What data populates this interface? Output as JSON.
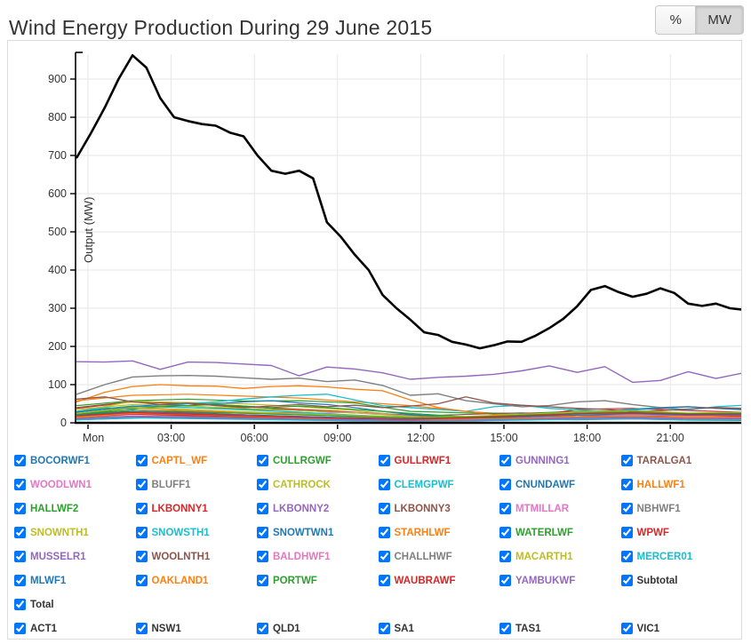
{
  "header": {
    "title": "Wind Energy Production During 29 June 2015",
    "unit_toggle": {
      "percent_label": "%",
      "mw_label": "MW",
      "active": "MW"
    }
  },
  "chart_data": {
    "type": "line",
    "title": "Wind Energy Production During 29 June 2015",
    "xlabel": "",
    "ylabel": "Output (MW)",
    "ylim": [
      0,
      970
    ],
    "yticks": [
      0,
      100,
      200,
      300,
      400,
      500,
      600,
      700,
      800,
      900
    ],
    "xtick_hours": [
      0,
      3,
      6,
      9,
      12,
      15,
      18,
      21
    ],
    "xtick_labels": [
      "Mon",
      "03:00",
      "06:00",
      "09:00",
      "12:00",
      "15:00",
      "18:00",
      "21:00"
    ],
    "x_range_hours": [
      -0.4,
      23.65
    ],
    "grid": true,
    "legend_position": "bottom",
    "axis_color": "#000000",
    "grid_color": "#e6e6e6",
    "series": [
      {
        "name": "BOCORWF1",
        "color": "#1f77b4",
        "w": 1.2,
        "values": [
          8,
          12,
          16,
          14,
          10,
          8,
          6,
          5,
          8,
          12,
          15,
          12,
          10
        ]
      },
      {
        "name": "CAPTL_WF",
        "color": "#ff7f0e",
        "w": 1.2,
        "values": [
          58,
          72,
          75,
          70,
          65,
          55,
          45,
          30,
          20,
          15,
          18,
          22,
          20
        ]
      },
      {
        "name": "CULLRGWF",
        "color": "#2ca02c",
        "w": 1.2,
        "values": [
          45,
          58,
          62,
          57,
          58,
          52,
          30,
          26,
          25,
          30,
          32,
          24,
          27
        ]
      },
      {
        "name": "GULLRWF1",
        "color": "#d62728",
        "w": 1.2,
        "values": [
          38,
          55,
          50,
          42,
          35,
          28,
          20,
          13,
          12,
          35,
          38,
          32,
          28
        ]
      },
      {
        "name": "GUNNING1",
        "color": "#9467bd",
        "w": 1.2,
        "values": [
          20,
          26,
          24,
          28,
          26,
          20,
          13,
          9,
          12,
          16,
          24,
          18,
          15
        ]
      },
      {
        "name": "TARALGA1",
        "color": "#8c564b",
        "w": 1.2,
        "values": [
          40,
          56,
          52,
          44,
          32,
          26,
          20,
          16,
          12,
          14,
          18,
          16,
          18
        ]
      },
      {
        "name": "WOODLWN1",
        "color": "#e377c2",
        "w": 1.2,
        "values": [
          12,
          22,
          18,
          14,
          11,
          9,
          8,
          10,
          13,
          12,
          14,
          11,
          12
        ]
      },
      {
        "name": "BLUFF1",
        "color": "#7f7f7f",
        "w": 1.2,
        "values": [
          8,
          14,
          16,
          13,
          11,
          8,
          6,
          7,
          9,
          8,
          10,
          7,
          6
        ]
      },
      {
        "name": "CATHROCK",
        "color": "#bcbd22",
        "w": 1.2,
        "values": [
          30,
          56,
          53,
          50,
          42,
          32,
          18,
          10,
          13,
          20,
          22,
          15,
          14
        ]
      },
      {
        "name": "CLEMGPWF",
        "color": "#17becf",
        "w": 1.3,
        "values": [
          30,
          40,
          35,
          45,
          50,
          55,
          62,
          68,
          72,
          75,
          60,
          45,
          40,
          35,
          30,
          42,
          46,
          38,
          34,
          30,
          36,
          40,
          34,
          42,
          46
        ]
      },
      {
        "name": "CNUNDAWF",
        "color": "#1f77b4",
        "w": 1.2,
        "values": [
          15,
          24,
          21,
          18,
          15,
          12,
          10,
          11,
          13,
          15,
          18,
          14,
          15
        ]
      },
      {
        "name": "HALLWF1",
        "color": "#ff7f0e",
        "w": 1.3,
        "values": [
          55,
          80,
          95,
          100,
          97,
          96,
          90,
          95,
          97,
          94,
          88,
          84,
          60,
          40,
          30,
          22,
          18,
          15,
          20,
          24,
          20,
          16,
          14,
          18,
          20
        ]
      },
      {
        "name": "HALLWF2",
        "color": "#2ca02c",
        "w": 1.2,
        "values": [
          30,
          44,
          40,
          36,
          32,
          26,
          20,
          16,
          18,
          24,
          28,
          24,
          26
        ]
      },
      {
        "name": "LKBONNY1",
        "color": "#d62728",
        "w": 1.2,
        "values": [
          20,
          33,
          27,
          21,
          15,
          11,
          12,
          16,
          20,
          24,
          20,
          24,
          21
        ]
      },
      {
        "name": "LKBONNY2",
        "color": "#9467bd",
        "w": 1.4,
        "values": [
          160,
          159,
          162,
          140,
          159,
          158,
          154,
          150,
          123,
          146,
          141,
          131,
          114,
          119,
          122,
          127,
          136,
          149,
          132,
          147,
          106,
          111,
          134,
          116,
          131
        ]
      },
      {
        "name": "LKBONNY3",
        "color": "#8c564b",
        "w": 1.2,
        "values": [
          25,
          29,
          26,
          21,
          15,
          13,
          17,
          22,
          26,
          22,
          18,
          20,
          17
        ]
      },
      {
        "name": "MTMILLAR",
        "color": "#e377c2",
        "w": 1.2,
        "values": [
          15,
          28,
          32,
          26,
          24,
          28,
          18,
          9,
          13,
          20,
          24,
          16,
          18
        ]
      },
      {
        "name": "NBHWF1",
        "color": "#7f7f7f",
        "w": 1.4,
        "values": [
          75,
          100,
          120,
          123,
          124,
          122,
          118,
          114,
          117,
          108,
          112,
          98,
          72,
          76,
          58,
          50,
          42,
          45,
          55,
          58,
          48,
          40,
          42,
          38,
          35
        ]
      },
      {
        "name": "SNOWNTH1",
        "color": "#bcbd22",
        "w": 1.2,
        "values": [
          35,
          48,
          44,
          38,
          32,
          26,
          16,
          12,
          16,
          22,
          26,
          22,
          24
        ]
      },
      {
        "name": "SNOWSTH1",
        "color": "#17becf",
        "w": 1.2,
        "values": [
          30,
          43,
          40,
          34,
          28,
          20,
          14,
          13,
          18,
          24,
          28,
          24,
          26
        ]
      },
      {
        "name": "SNOWTWN1",
        "color": "#1f77b4",
        "w": 1.2,
        "values": [
          28,
          35,
          42,
          48,
          45,
          50,
          55,
          58,
          52,
          48,
          40,
          30,
          22,
          18,
          14,
          12,
          16,
          20,
          26,
          30,
          34,
          38,
          42,
          38,
          34
        ]
      },
      {
        "name": "STARHLWF",
        "color": "#ff7f0e",
        "w": 1.2,
        "values": [
          25,
          38,
          32,
          27,
          22,
          16,
          10,
          8,
          12,
          16,
          20,
          16,
          18
        ]
      },
      {
        "name": "WATERLWF",
        "color": "#2ca02c",
        "w": 1.2,
        "values": [
          25,
          30,
          38,
          42,
          45,
          48,
          44,
          40,
          44,
          40,
          35,
          30,
          25,
          20,
          16,
          12,
          15,
          18,
          24,
          28,
          32,
          28,
          24,
          20,
          24
        ]
      },
      {
        "name": "WPWF",
        "color": "#d62728",
        "w": 1.2,
        "values": [
          15,
          23,
          19,
          16,
          13,
          10,
          8,
          12,
          16,
          20,
          16,
          20,
          17
        ]
      },
      {
        "name": "MUSSELR1",
        "color": "#9467bd",
        "w": 1.2,
        "values": [
          10,
          16,
          13,
          11,
          9,
          7,
          5,
          6,
          8,
          10,
          12,
          9,
          10
        ]
      },
      {
        "name": "WOOLNTH1",
        "color": "#8c564b",
        "w": 1.3,
        "values": [
          62,
          68,
          55,
          48,
          52,
          45,
          40,
          44,
          48,
          42,
          46,
          40,
          44,
          50,
          68,
          52,
          46,
          42,
          38,
          35,
          30,
          32,
          36,
          40,
          38
        ]
      },
      {
        "name": "BALDHWF1",
        "color": "#e377c2",
        "w": 1.2,
        "values": [
          18,
          28,
          25,
          21,
          17,
          13,
          10,
          12,
          16,
          20,
          22,
          18,
          20
        ]
      },
      {
        "name": "CHALLHWF",
        "color": "#7f7f7f",
        "w": 1.2,
        "values": [
          12,
          18,
          16,
          13,
          11,
          9,
          7,
          8,
          12,
          14,
          16,
          12,
          13
        ]
      },
      {
        "name": "MACARTH1",
        "color": "#bcbd22",
        "w": 1.2,
        "values": [
          25,
          40,
          35,
          29,
          24,
          19,
          15,
          17,
          22,
          28,
          32,
          26,
          28
        ]
      },
      {
        "name": "MERCER01",
        "color": "#17becf",
        "w": 1.2,
        "values": [
          8,
          13,
          11,
          9,
          7,
          5,
          4,
          5,
          7,
          9,
          10,
          8,
          8
        ]
      },
      {
        "name": "MLWF1",
        "color": "#1f77b4",
        "w": 1.2,
        "values": [
          20,
          29,
          25,
          21,
          17,
          13,
          10,
          12,
          16,
          20,
          24,
          20,
          21
        ]
      },
      {
        "name": "OAKLAND1",
        "color": "#ff7f0e",
        "w": 1.2,
        "values": [
          15,
          25,
          22,
          18,
          14,
          11,
          8,
          9,
          12,
          16,
          18,
          14,
          15
        ]
      },
      {
        "name": "PORTWF",
        "color": "#2ca02c",
        "w": 1.2,
        "values": [
          22,
          33,
          29,
          25,
          21,
          17,
          13,
          15,
          20,
          25,
          28,
          24,
          25
        ]
      },
      {
        "name": "WAUBRAWF",
        "color": "#d62728",
        "w": 1.2,
        "values": [
          18,
          27,
          23,
          19,
          15,
          11,
          9,
          13,
          18,
          24,
          26,
          22,
          23
        ]
      },
      {
        "name": "YAMBUKWF",
        "color": "#9467bd",
        "w": 1.2,
        "values": [
          10,
          17,
          15,
          12,
          10,
          8,
          6,
          7,
          10,
          13,
          15,
          11,
          12
        ]
      },
      {
        "name": "Total",
        "color": "#000000",
        "w": 2.6,
        "values": [
          695,
          758,
          825,
          900,
          962,
          930,
          850,
          800,
          790,
          782,
          778,
          760,
          750,
          700,
          660,
          652,
          660,
          640,
          525,
          487,
          440,
          400,
          335,
          300,
          270,
          237,
          230,
          212,
          205,
          195,
          203,
          213,
          212,
          228,
          248,
          272,
          305,
          348,
          358,
          342,
          330,
          338,
          352,
          340,
          312,
          306,
          312,
          300,
          296
        ]
      }
    ]
  },
  "legend": {
    "rows": [
      [
        {
          "label": "BOCORWF1",
          "color": "#1f77b4"
        },
        {
          "label": "CAPTL_WF",
          "color": "#ff7f0e"
        },
        {
          "label": "CULLRGWF",
          "color": "#2ca02c"
        },
        {
          "label": "GULLRWF1",
          "color": "#d62728"
        },
        {
          "label": "GUNNING1",
          "color": "#9467bd"
        },
        {
          "label": "TARALGA1",
          "color": "#8c564b"
        }
      ],
      [
        {
          "label": "WOODLWN1",
          "color": "#e377c2"
        },
        {
          "label": "BLUFF1",
          "color": "#7f7f7f"
        },
        {
          "label": "CATHROCK",
          "color": "#bcbd22"
        },
        {
          "label": "CLEMGPWF",
          "color": "#17becf"
        },
        {
          "label": "CNUNDAWF",
          "color": "#1f77b4"
        },
        {
          "label": "HALLWF1",
          "color": "#ff7f0e"
        }
      ],
      [
        {
          "label": "HALLWF2",
          "color": "#2ca02c"
        },
        {
          "label": "LKBONNY1",
          "color": "#d62728"
        },
        {
          "label": "LKBONNY2",
          "color": "#9467bd"
        },
        {
          "label": "LKBONNY3",
          "color": "#8c564b"
        },
        {
          "label": "MTMILLAR",
          "color": "#e377c2"
        },
        {
          "label": "NBHWF1",
          "color": "#7f7f7f"
        }
      ],
      [
        {
          "label": "SNOWNTH1",
          "color": "#bcbd22"
        },
        {
          "label": "SNOWSTH1",
          "color": "#17becf"
        },
        {
          "label": "SNOWTWN1",
          "color": "#1f77b4"
        },
        {
          "label": "STARHLWF",
          "color": "#ff7f0e"
        },
        {
          "label": "WATERLWF",
          "color": "#2ca02c"
        },
        {
          "label": "WPWF",
          "color": "#d62728"
        }
      ],
      [
        {
          "label": "MUSSELR1",
          "color": "#9467bd"
        },
        {
          "label": "WOOLNTH1",
          "color": "#8c564b"
        },
        {
          "label": "BALDHWF1",
          "color": "#e377c2"
        },
        {
          "label": "CHALLHWF",
          "color": "#7f7f7f"
        },
        {
          "label": "MACARTH1",
          "color": "#bcbd22"
        },
        {
          "label": "MERCER01",
          "color": "#17becf"
        }
      ],
      [
        {
          "label": "MLWF1",
          "color": "#1f77b4"
        },
        {
          "label": "OAKLAND1",
          "color": "#ff7f0e"
        },
        {
          "label": "PORTWF",
          "color": "#2ca02c"
        },
        {
          "label": "WAUBRAWF",
          "color": "#d62728"
        },
        {
          "label": "YAMBUKWF",
          "color": "#9467bd"
        },
        {
          "label": "Subtotal",
          "color": "#333333"
        }
      ],
      [
        {
          "label": "Total",
          "color": "#333333"
        }
      ],
      [
        {
          "label": "ACT1",
          "color": "#333333"
        },
        {
          "label": "NSW1",
          "color": "#333333"
        },
        {
          "label": "QLD1",
          "color": "#333333"
        },
        {
          "label": "SA1",
          "color": "#333333"
        },
        {
          "label": "TAS1",
          "color": "#333333"
        },
        {
          "label": "VIC1",
          "color": "#333333"
        }
      ]
    ],
    "all_checked": true
  }
}
